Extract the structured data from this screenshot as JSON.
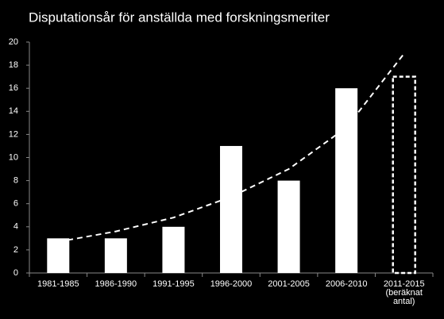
{
  "chart_data": {
    "type": "bar",
    "title": "Disputationsår för anställda med forskningsmeriter",
    "categories": [
      "1981-1985",
      "1986-1990",
      "1991-1995",
      "1996-2000",
      "2001-2005",
      "2006-2010",
      "2011-2015\n(beräknat\nantal)"
    ],
    "values": [
      3,
      3,
      4,
      11,
      8,
      16,
      17
    ],
    "dashed": [
      false,
      false,
      false,
      false,
      false,
      false,
      true
    ],
    "color": "#ffffff",
    "trendline": {
      "values": [
        2.7,
        3.6,
        4.8,
        6.6,
        9.0,
        12.6,
        19.0
      ],
      "color": "#ffffff"
    },
    "ylim": [
      0,
      20
    ],
    "yticks": [
      0,
      2,
      4,
      6,
      8,
      10,
      12,
      14,
      16,
      18,
      20
    ],
    "grid": false
  }
}
